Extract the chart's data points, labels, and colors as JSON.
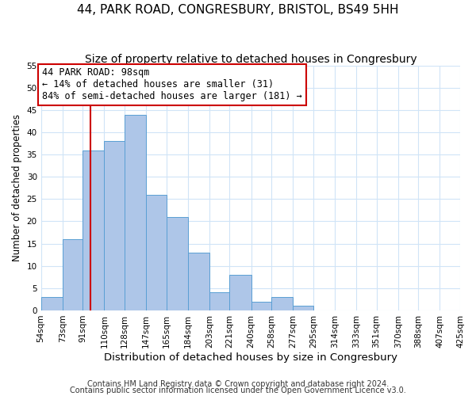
{
  "title": "44, PARK ROAD, CONGRESBURY, BRISTOL, BS49 5HH",
  "subtitle": "Size of property relative to detached houses in Congresbury",
  "xlabel": "Distribution of detached houses by size in Congresbury",
  "ylabel": "Number of detached properties",
  "bar_color": "#aec6e8",
  "bar_edge_color": "#5a9fd4",
  "grid_color": "#d0e4f7",
  "bin_edges": [
    54,
    73,
    91,
    110,
    128,
    147,
    165,
    184,
    203,
    221,
    240,
    258,
    277,
    295,
    314,
    333,
    351,
    370,
    388,
    407,
    425
  ],
  "counts": [
    3,
    16,
    36,
    38,
    44,
    26,
    21,
    13,
    4,
    8,
    2,
    3,
    1,
    0,
    0,
    0,
    0,
    0,
    0,
    0
  ],
  "tick_labels": [
    "54sqm",
    "73sqm",
    "91sqm",
    "110sqm",
    "128sqm",
    "147sqm",
    "165sqm",
    "184sqm",
    "203sqm",
    "221sqm",
    "240sqm",
    "258sqm",
    "277sqm",
    "295sqm",
    "314sqm",
    "333sqm",
    "351sqm",
    "370sqm",
    "388sqm",
    "407sqm",
    "425sqm"
  ],
  "vline_x": 98,
  "vline_color": "#cc0000",
  "annotation_line1": "44 PARK ROAD: 98sqm",
  "annotation_line2": "← 14% of detached houses are smaller (31)",
  "annotation_line3": "84% of semi-detached houses are larger (181) →",
  "annotation_box_color": "white",
  "annotation_box_edge": "#cc0000",
  "ylim": [
    0,
    55
  ],
  "yticks": [
    0,
    5,
    10,
    15,
    20,
    25,
    30,
    35,
    40,
    45,
    50,
    55
  ],
  "footnote1": "Contains HM Land Registry data © Crown copyright and database right 2024.",
  "footnote2": "Contains public sector information licensed under the Open Government Licence v3.0.",
  "title_fontsize": 11,
  "subtitle_fontsize": 10,
  "xlabel_fontsize": 9.5,
  "ylabel_fontsize": 8.5,
  "tick_fontsize": 7.5,
  "annotation_fontsize": 8.5,
  "footnote_fontsize": 7
}
